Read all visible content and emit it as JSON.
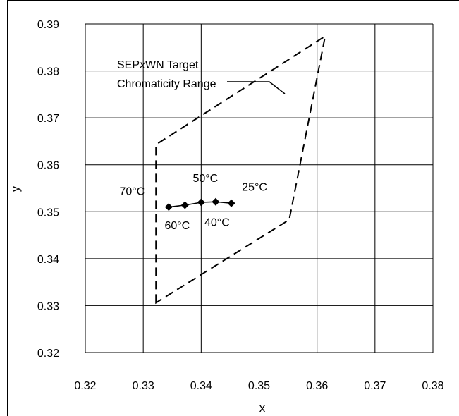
{
  "chart_data": {
    "type": "scatter",
    "xlabel": "x",
    "ylabel": "y",
    "xlim": [
      0.32,
      0.38
    ],
    "ylim": [
      0.32,
      0.39
    ],
    "x_ticks": [
      "0.32",
      "0.33",
      "0.34",
      "0.35",
      "0.36",
      "0.37",
      "0.38"
    ],
    "y_ticks": [
      "0.32",
      "0.33",
      "0.34",
      "0.35",
      "0.36",
      "0.37",
      "0.38",
      "0.39"
    ],
    "grid": true,
    "target_range": {
      "label_line1": "SEPxWN Target",
      "label_line2": "Chromaticity Range",
      "label_prefix": "SEP",
      "label_italic": "x",
      "label_suffix": "WN Target",
      "polygon": [
        {
          "x": 0.3322,
          "y": 0.3306
        },
        {
          "x": 0.3322,
          "y": 0.3643
        },
        {
          "x": 0.3614,
          "y": 0.3874
        },
        {
          "x": 0.3552,
          "y": 0.3483
        }
      ],
      "style": "dashed",
      "color": "#000000"
    },
    "series": [
      {
        "points": [
          {
            "x": 0.3344,
            "y": 0.351,
            "label": "70°C"
          },
          {
            "x": 0.3372,
            "y": 0.3514,
            "label": "60°C"
          },
          {
            "x": 0.34,
            "y": 0.352,
            "label": "50°C"
          },
          {
            "x": 0.3425,
            "y": 0.3521,
            "label": "40°C"
          },
          {
            "x": 0.3452,
            "y": 0.3518,
            "label": "25°C"
          }
        ],
        "marker": "diamond",
        "color": "#000000"
      }
    ]
  }
}
